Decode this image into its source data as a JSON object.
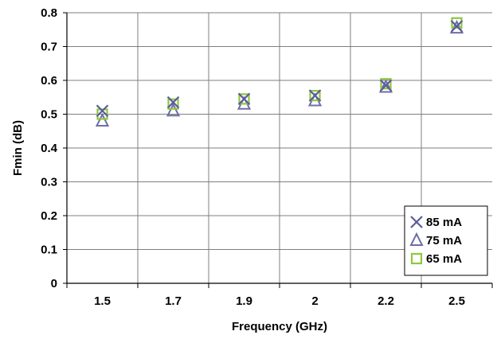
{
  "chart_data": {
    "type": "scatter",
    "title": "",
    "xlabel": "Frequency (GHz)",
    "ylabel": "Fmin (dB)",
    "categories": [
      "1.5",
      "1.7",
      "1.9",
      "2",
      "2.2",
      "2.5"
    ],
    "ylim": [
      0,
      0.8
    ],
    "yticks": [
      "0",
      "0.1",
      "0.2",
      "0.3",
      "0.4",
      "0.5",
      "0.6",
      "0.7",
      "0.8"
    ],
    "grid": true,
    "legend_position": "bottom-right",
    "series": [
      {
        "name": "85 mA",
        "marker": "x",
        "color": "#5b5b9c",
        "values": [
          0.51,
          0.535,
          0.545,
          0.555,
          0.585,
          0.76
        ]
      },
      {
        "name": "75 mA",
        "marker": "triangle",
        "color": "#6e6ea8",
        "values": [
          0.48,
          0.51,
          0.53,
          0.54,
          0.58,
          0.755
        ]
      },
      {
        "name": "65 mA",
        "marker": "square",
        "color": "#8ec73e",
        "values": [
          0.5,
          0.53,
          0.545,
          0.555,
          0.59,
          0.77
        ]
      }
    ]
  }
}
